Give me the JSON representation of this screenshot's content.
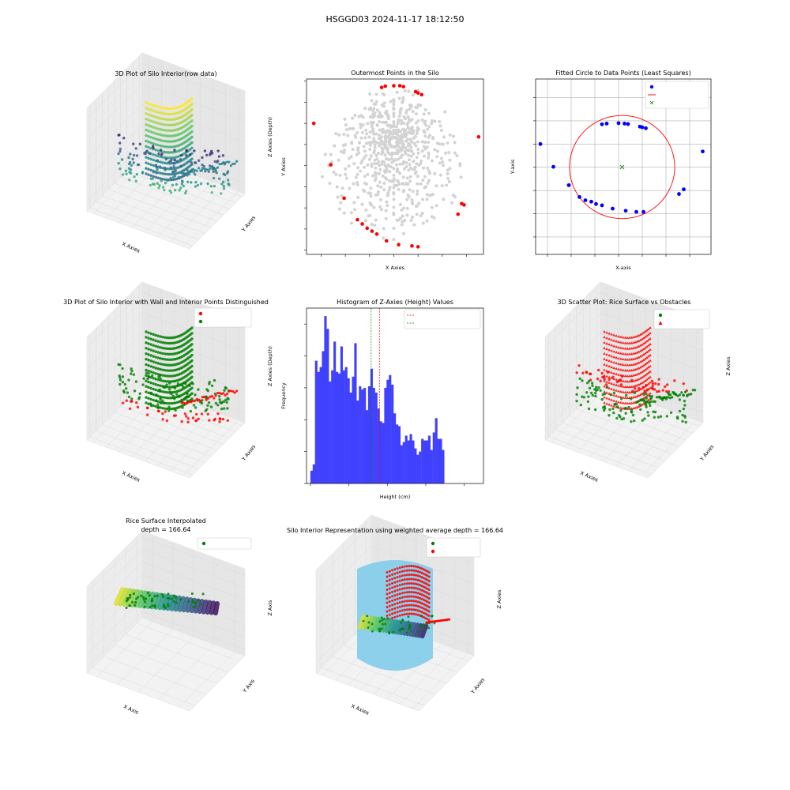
{
  "figure": {
    "suptitle": "HSGGD03 2024-11-17 18:12:50"
  },
  "colors": {
    "red": "#ff0000",
    "green": "#008000",
    "blue": "#0000ff",
    "gray": "#d3d3d3",
    "sky": "#87ceeb",
    "hist": "#4040ff"
  },
  "chart_data": [
    {
      "id": "p1",
      "type": "scatter3d",
      "title": "3D Plot of Silo Interior(row data)",
      "xlabel": "X Axies",
      "ylabel": "Y Axies",
      "zlabel": "Z Axies (Depth)",
      "xticks": [
        "−300",
        "−200",
        "−100",
        "0",
        "100",
        "200",
        "300",
        "400"
      ],
      "yticks": [
        "100",
        "50",
        "0",
        "−50",
        "−100",
        "−150",
        "−200",
        "−250",
        "−300"
      ],
      "zticks": [
        "−50",
        "−100",
        "−150",
        "−200",
        "−250"
      ],
      "xlim": [
        -330,
        420
      ],
      "ylim": [
        -320,
        110
      ],
      "zlim": [
        -270,
        -20
      ],
      "colormap": "viridis"
    },
    {
      "id": "p2",
      "type": "scatter",
      "title": "Outermost Points in the Silo",
      "xlabel": "X Axies",
      "ylabel": "Y Axies",
      "xlim": [
        -360,
        370
      ],
      "ylim": [
        -310,
        105
      ],
      "xticks": [
        -300,
        -200,
        -100,
        0,
        100,
        200,
        300
      ],
      "yticks": [
        100,
        50,
        0,
        -50,
        -100,
        -150,
        -200,
        -250,
        -300
      ],
      "outer_points": [
        [
          -330,
          0
        ],
        [
          -50,
          85
        ],
        [
          -35,
          88
        ],
        [
          0,
          89
        ],
        [
          25,
          89
        ],
        [
          40,
          87
        ],
        [
          90,
          75
        ],
        [
          100,
          72
        ],
        [
          115,
          68
        ],
        [
          350,
          -32
        ],
        [
          -260,
          -98
        ],
        [
          -205,
          -177
        ],
        [
          -150,
          -228
        ],
        [
          -130,
          -238
        ],
        [
          -110,
          -248
        ],
        [
          -90,
          -255
        ],
        [
          -70,
          -262
        ],
        [
          -30,
          -278
        ],
        [
          20,
          -287
        ],
        [
          75,
          -290
        ],
        [
          100,
          -292
        ],
        [
          290,
          -193
        ],
        [
          265,
          -215
        ],
        [
          280,
          -190
        ]
      ]
    },
    {
      "id": "p3",
      "type": "scatter",
      "title": "Fitted Circle to Data Points (Least Squares)",
      "xlabel": "X-axis",
      "ylabel": "Y-axis",
      "xlim": [
        -350,
        390
      ],
      "ylim": [
        -475,
        280
      ],
      "xticks": [
        -300,
        -200,
        -100,
        0,
        100,
        200,
        300
      ],
      "yticks": [
        200,
        100,
        0,
        -100,
        -200,
        -300,
        -400
      ],
      "legend": [
        "Data Points",
        "Fitted Circle",
        "Center of Circle"
      ],
      "data_points": [
        [
          -330,
          0
        ],
        [
          -275,
          -98
        ],
        [
          -210,
          -177
        ],
        [
          -165,
          -228
        ],
        [
          -140,
          -242
        ],
        [
          -115,
          -248
        ],
        [
          -95,
          -258
        ],
        [
          -70,
          -264
        ],
        [
          -25,
          -278
        ],
        [
          -70,
          85
        ],
        [
          -50,
          88
        ],
        [
          0,
          90
        ],
        [
          25,
          88
        ],
        [
          40,
          86
        ],
        [
          90,
          75
        ],
        [
          100,
          72
        ],
        [
          115,
          68
        ],
        [
          355,
          -32
        ],
        [
          275,
          -195
        ],
        [
          255,
          -215
        ],
        [
          75,
          -292
        ],
        [
          30,
          -287
        ],
        [
          105,
          -292
        ]
      ],
      "circle": {
        "center": [
          15,
          -99
        ],
        "radius": 222
      }
    },
    {
      "id": "p4",
      "type": "scatter3d",
      "title": "3D Plot of Silo Interior with Wall and Interior Points Distinguished",
      "xlabel": "X Axies",
      "ylabel": "Y Axies",
      "zlabel": "Z Axies (Depth)",
      "xticks": [
        "−300",
        "−200",
        "−100",
        "0",
        "100",
        "200",
        "300",
        "400"
      ],
      "yticks": [
        "100",
        "50",
        "0",
        "−50",
        "−100",
        "−150",
        "−200",
        "−250",
        "−300"
      ],
      "zticks": [
        "−50",
        "−100",
        "−150",
        "−200",
        "−250"
      ],
      "legend": [
        "Silo Wall",
        "Interior (Rice)"
      ]
    },
    {
      "id": "p5",
      "type": "bar",
      "title": "Histogram of Z-Axies (Height) Values",
      "xlabel": "Height (cm)",
      "ylabel": "Frequency",
      "xlim": [
        -255,
        -25
      ],
      "ylim": [
        0,
        110
      ],
      "xticks": [
        -250,
        -200,
        -150,
        -100,
        -50
      ],
      "yticks": [
        0,
        20,
        40,
        60,
        80,
        100
      ],
      "bin_start": -250,
      "bin_width": 3,
      "counts": [
        8,
        12,
        77,
        70,
        73,
        83,
        105,
        97,
        64,
        71,
        89,
        70,
        69,
        86,
        71,
        73,
        66,
        57,
        67,
        88,
        52,
        61,
        59,
        60,
        46,
        61,
        72,
        60,
        57,
        47,
        39,
        38,
        60,
        65,
        68,
        62,
        44,
        37,
        36,
        24,
        26,
        30,
        27,
        31,
        27,
        22,
        18,
        20,
        28,
        27,
        27,
        30,
        21,
        32,
        41,
        28,
        28,
        21
      ],
      "mean": -160.17,
      "median": -171.0,
      "legend": [
        "Mean: -160.17 cm",
        "Median: -171.00 cm"
      ]
    },
    {
      "id": "p6",
      "type": "scatter3d",
      "title": "3D Scatter Plot: Rice Surface vs Obstacles",
      "xlabel": "X Axies",
      "ylabel": "Y Axies",
      "zlabel": "Z Axies",
      "xticks": [
        "−300",
        "−200",
        "−100",
        "0",
        "100",
        "200",
        "300",
        "400"
      ],
      "yticks": [
        "100",
        "50",
        "0",
        "−50",
        "−100",
        "−150",
        "−200",
        "−250"
      ],
      "zticks": [
        "−50",
        "−100",
        "−150",
        "−200",
        "−250"
      ],
      "legend": [
        "Rice Surface",
        "Obstacles"
      ]
    },
    {
      "id": "p7",
      "type": "surface3d",
      "title": "Rice Surface Interpolated",
      "subtitle": "depth = 166.64",
      "xlabel": "X Axis",
      "ylabel": "Y Axis",
      "zlabel": "Z Axis",
      "xticks": [
        "−200",
        "−100",
        "0",
        "100",
        "200"
      ],
      "yticks": [
        "100",
        "0",
        "−100",
        "−200",
        "−300"
      ],
      "zticks": [
        "0",
        "−100",
        "−200",
        "−300",
        "−400",
        "−500",
        "−600"
      ],
      "legend": [
        "Rice Surface"
      ]
    },
    {
      "id": "p8",
      "type": "scatter3d",
      "title": "Silo Interior Representation using weighted average depth = 166.64",
      "xlabel": "X Axies",
      "ylabel": "Y Axies",
      "zlabel": "Z Axies",
      "xticks": [
        "−300",
        "−200",
        "−100",
        "0",
        "100",
        "200",
        "300",
        "400"
      ],
      "yticks": [
        "100",
        "0",
        "−100",
        "−200",
        "−300"
      ],
      "zticks": [
        "−50",
        "−100",
        "−150",
        "−200",
        "−250"
      ],
      "legend": [
        "Rice Surface",
        "Obstacles"
      ]
    }
  ]
}
